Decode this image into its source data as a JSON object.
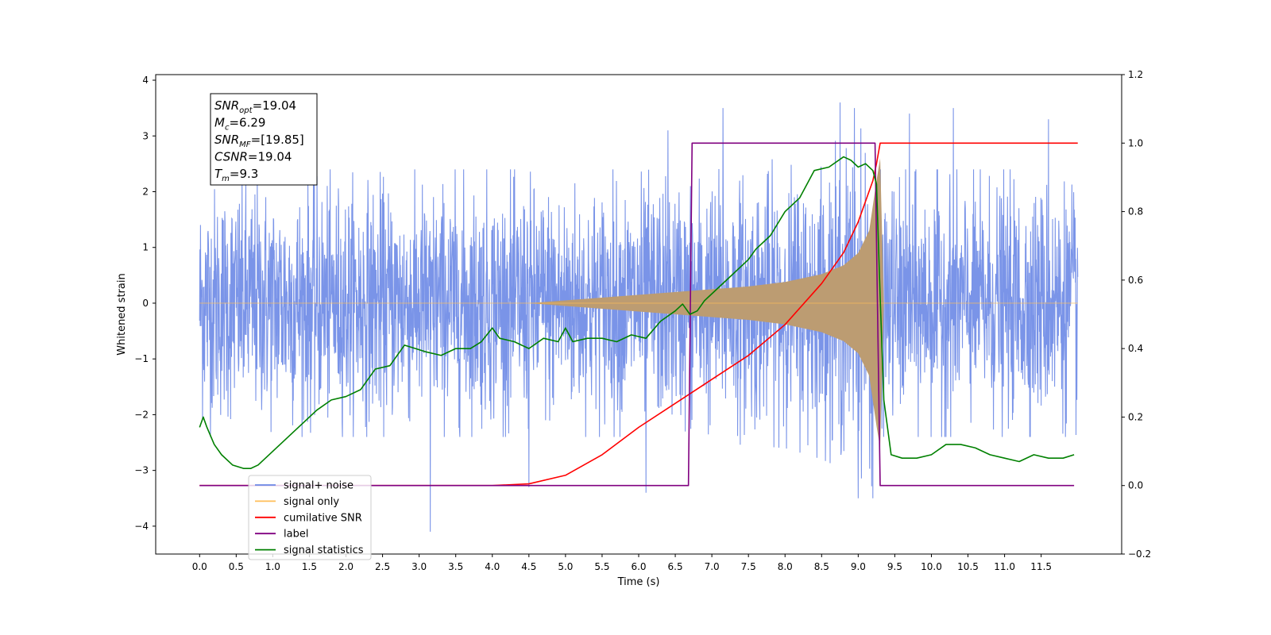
{
  "chart_data": {
    "type": "line",
    "title": "",
    "xlabel": "Time (s)",
    "ylabel": "Whitened strain",
    "xlim": [
      -0.6,
      12.6
    ],
    "ylim": [
      -4.5,
      4.1
    ],
    "y2lim": [
      -0.2,
      1.2
    ],
    "x_ticks": [
      0.0,
      0.5,
      1.0,
      1.5,
      2.0,
      2.5,
      3.0,
      3.5,
      4.0,
      4.5,
      5.0,
      5.5,
      6.0,
      6.5,
      7.0,
      7.5,
      8.0,
      8.5,
      9.0,
      9.5,
      10.0,
      10.5,
      11.0,
      11.5
    ],
    "x_tick_labels": [
      "0.0",
      "0.5",
      "1.0",
      "1.5",
      "2.0",
      "2.5",
      "3.0",
      "3.5",
      "4.0",
      "4.5",
      "5.0",
      "5.5",
      "6.0",
      "6.5",
      "7.0",
      "7.5",
      "8.0",
      "8.5",
      "9.0",
      "9.5",
      "10.0",
      "10.5",
      "11.0",
      "11.5"
    ],
    "y_ticks": [
      -4,
      -3,
      -2,
      -1,
      0,
      1,
      2,
      3,
      4
    ],
    "y_tick_labels": [
      "−4",
      "−3",
      "−2",
      "−1",
      "0",
      "1",
      "2",
      "3",
      "4"
    ],
    "y2_ticks": [
      -0.2,
      0.0,
      0.2,
      0.4,
      0.6,
      0.8,
      1.0,
      1.2
    ],
    "y2_tick_labels": [
      "−0.2",
      "0.0",
      "0.2",
      "0.4",
      "0.6",
      "0.8",
      "1.0",
      "1.2"
    ],
    "grid": false,
    "legend": {
      "placement": "lower-left",
      "entries": [
        {
          "label": "signal+ noise",
          "color": "#6b88e6"
        },
        {
          "label": "signal only",
          "color": "#ffbe57"
        },
        {
          "label": "cumilative SNR",
          "color": "#ff0000"
        },
        {
          "label": "label",
          "color": "#800080"
        },
        {
          "label": "signal statistics",
          "color": "#008000"
        }
      ]
    },
    "annotation": {
      "lines": [
        {
          "base": "SNR",
          "sub": "opt",
          "value": "=19.04"
        },
        {
          "base": "M",
          "sub": "c",
          "value": "=6.29"
        },
        {
          "base": "SNR",
          "sub": "MF",
          "value": "=[19.85]"
        },
        {
          "base": "CSNR",
          "sub": "",
          "value": "=19.04"
        },
        {
          "base": "T",
          "sub": "m",
          "value": "=9.3"
        }
      ]
    },
    "series": [
      {
        "name": "signal+ noise",
        "axis": "left",
        "color": "#6b88e6",
        "kind": "noise-band",
        "x_range": [
          0.0,
          12.0
        ],
        "envelope": {
          "x": [
            0.0,
            6.0,
            7.0,
            8.0,
            8.5,
            9.0,
            9.2,
            9.3,
            12.0
          ],
          "amp": [
            2.4,
            2.4,
            2.5,
            2.6,
            2.8,
            3.1,
            3.3,
            2.4,
            2.4
          ]
        },
        "outliers": [
          {
            "x": 3.15,
            "y": -4.1
          },
          {
            "x": 6.1,
            "y": -3.4
          },
          {
            "x": 6.4,
            "y": 3.1
          },
          {
            "x": 7.15,
            "y": 3.5
          },
          {
            "x": 8.75,
            "y": 3.6
          },
          {
            "x": 8.95,
            "y": 3.5
          },
          {
            "x": 9.0,
            "y": -3.5
          },
          {
            "x": 9.2,
            "y": -3.5
          },
          {
            "x": 9.7,
            "y": 3.4
          },
          {
            "x": 10.3,
            "y": 3.5
          },
          {
            "x": 11.6,
            "y": 3.3
          },
          {
            "x": 4.5,
            "y": -3.3
          }
        ]
      },
      {
        "name": "signal only",
        "axis": "left",
        "color": "#ffbe57",
        "kind": "chirp",
        "x_range": [
          0.0,
          12.0
        ],
        "envelope": {
          "x": [
            0.0,
            4.5,
            5.5,
            6.5,
            7.0,
            7.5,
            8.0,
            8.5,
            8.8,
            9.0,
            9.15,
            9.25,
            9.3,
            9.35,
            12.0
          ],
          "amp": [
            0.0,
            0.0,
            0.1,
            0.2,
            0.25,
            0.3,
            0.38,
            0.52,
            0.68,
            0.9,
            1.3,
            2.2,
            2.6,
            0.0,
            0.0
          ]
        }
      },
      {
        "name": "cumilative SNR",
        "axis": "right",
        "color": "#ff0000",
        "x": [
          0.0,
          3.0,
          4.0,
          4.5,
          5.0,
          5.5,
          6.0,
          6.5,
          7.0,
          7.5,
          8.0,
          8.5,
          8.8,
          9.0,
          9.1,
          9.2,
          9.25,
          9.3,
          12.0
        ],
        "y": [
          0.0,
          0.0,
          0.0,
          0.005,
          0.03,
          0.09,
          0.17,
          0.24,
          0.31,
          0.38,
          0.47,
          0.59,
          0.68,
          0.77,
          0.83,
          0.89,
          0.94,
          1.0,
          1.0
        ]
      },
      {
        "name": "label",
        "axis": "right",
        "color": "#800080",
        "x": [
          0.0,
          6.68,
          6.73,
          9.23,
          9.3,
          11.95
        ],
        "y": [
          0.0,
          0.0,
          1.0,
          1.0,
          0.0,
          0.0
        ]
      },
      {
        "name": "signal statistics",
        "axis": "right",
        "color": "#008000",
        "x": [
          0.0,
          0.05,
          0.1,
          0.2,
          0.3,
          0.45,
          0.6,
          0.7,
          0.8,
          1.0,
          1.2,
          1.4,
          1.6,
          1.8,
          2.0,
          2.2,
          2.4,
          2.6,
          2.8,
          2.95,
          3.1,
          3.3,
          3.5,
          3.7,
          3.85,
          4.0,
          4.1,
          4.3,
          4.5,
          4.7,
          4.9,
          5.0,
          5.1,
          5.3,
          5.5,
          5.7,
          5.9,
          6.1,
          6.3,
          6.5,
          6.6,
          6.7,
          6.8,
          6.9,
          7.0,
          7.2,
          7.4,
          7.5,
          7.6,
          7.8,
          8.0,
          8.2,
          8.4,
          8.6,
          8.8,
          8.9,
          9.0,
          9.1,
          9.2,
          9.25,
          9.3,
          9.35,
          9.45,
          9.6,
          9.8,
          10.0,
          10.2,
          10.4,
          10.6,
          10.8,
          11.0,
          11.2,
          11.4,
          11.6,
          11.8,
          11.95
        ],
        "y": [
          0.17,
          0.2,
          0.17,
          0.12,
          0.09,
          0.06,
          0.05,
          0.05,
          0.06,
          0.1,
          0.14,
          0.18,
          0.22,
          0.25,
          0.26,
          0.28,
          0.34,
          0.35,
          0.41,
          0.4,
          0.39,
          0.38,
          0.4,
          0.4,
          0.42,
          0.46,
          0.43,
          0.42,
          0.4,
          0.43,
          0.42,
          0.46,
          0.42,
          0.43,
          0.43,
          0.42,
          0.44,
          0.43,
          0.48,
          0.51,
          0.53,
          0.5,
          0.51,
          0.54,
          0.56,
          0.6,
          0.64,
          0.66,
          0.69,
          0.73,
          0.8,
          0.84,
          0.92,
          0.93,
          0.96,
          0.95,
          0.93,
          0.94,
          0.92,
          0.88,
          0.55,
          0.25,
          0.09,
          0.08,
          0.08,
          0.09,
          0.12,
          0.12,
          0.11,
          0.09,
          0.08,
          0.07,
          0.09,
          0.08,
          0.08,
          0.09
        ]
      }
    ]
  }
}
